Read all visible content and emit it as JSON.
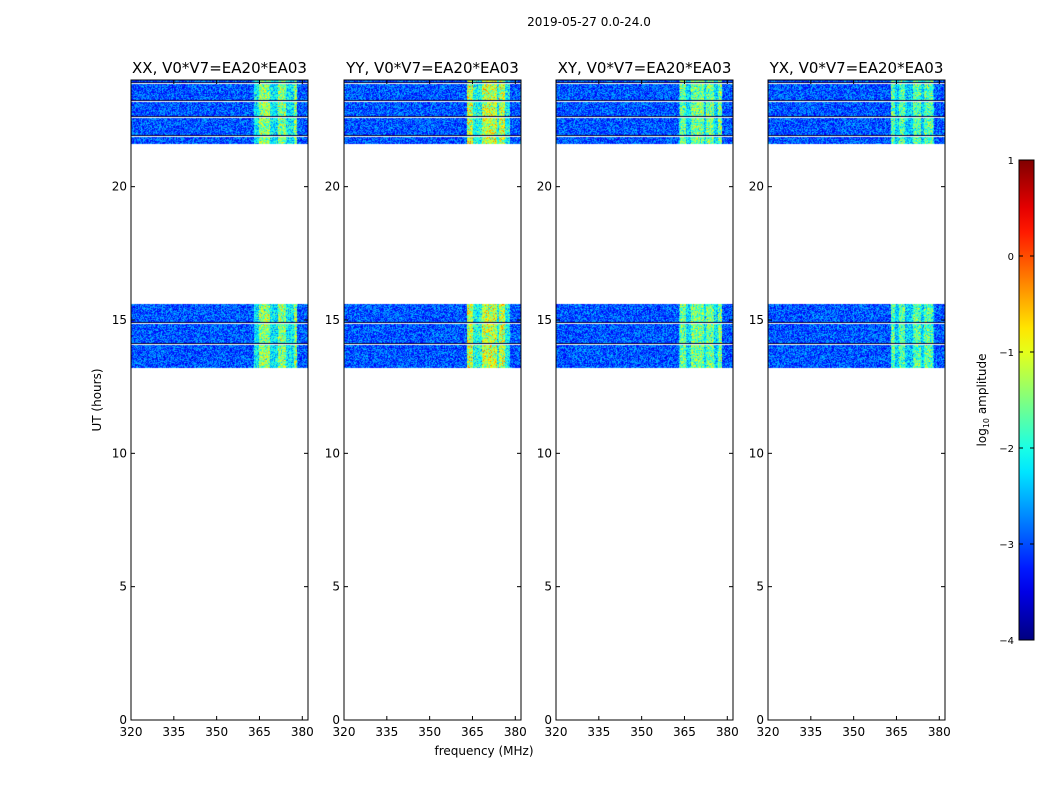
{
  "suptitle": "2019-05-27 0.0-24.0",
  "chart_data": {
    "type": "heatmap",
    "xlabel": "frequency (MHz)",
    "ylabel": "UT (hours)",
    "xlim": [
      320,
      382
    ],
    "ylim": [
      0,
      24
    ],
    "xticks": [
      320,
      335,
      350,
      365,
      380
    ],
    "yticks": [
      0,
      5,
      10,
      15,
      20
    ],
    "data_time_ranges_hours": [
      [
        13.2,
        15.6
      ],
      [
        21.6,
        24.0
      ]
    ],
    "flagged_rows_hours": [
      21.9,
      22.6,
      23.2,
      23.9,
      14.1,
      14.9
    ],
    "bright_band_mhz": [
      363,
      378
    ],
    "panels": [
      {
        "title": "XX, V0*V7=EA20*EA03",
        "band_strength": 0.55
      },
      {
        "title": "YY, V0*V7=EA20*EA03",
        "band_strength": 0.65
      },
      {
        "title": "XY, V0*V7=EA20*EA03",
        "band_strength": 0.5
      },
      {
        "title": "YX, V0*V7=EA20*EA03",
        "band_strength": 0.45
      }
    ],
    "colorbar": {
      "label": "log10 amplitude",
      "range": [
        -4,
        1
      ],
      "ticks": [
        -4,
        -3,
        -2,
        -1,
        0,
        1
      ],
      "colormap": "jet"
    }
  }
}
